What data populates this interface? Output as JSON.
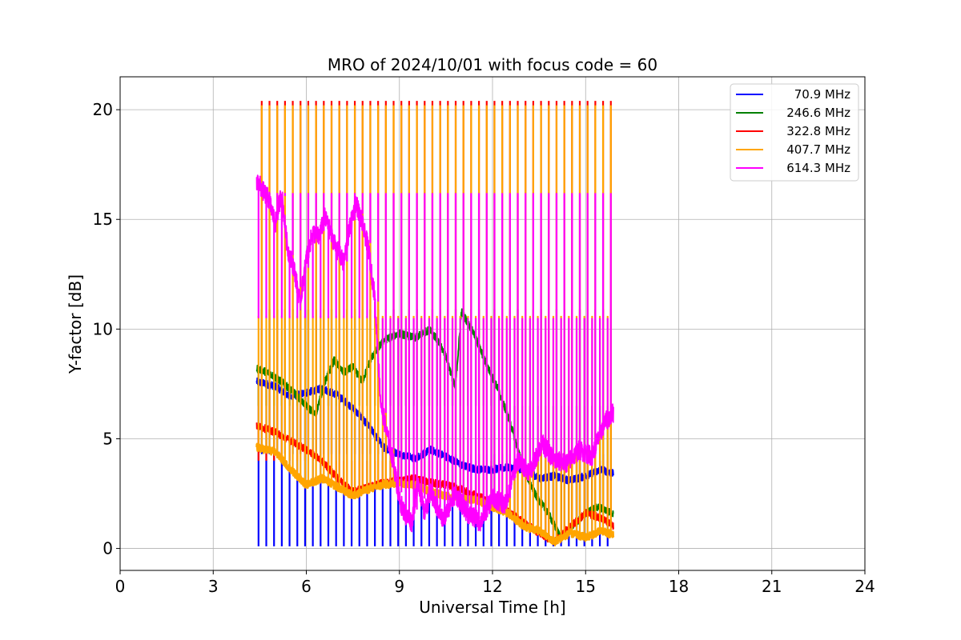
{
  "chart_data": {
    "type": "line",
    "title": "MRO of 2024/10/01 with focus code = 60",
    "xlabel": "Universal Time [h]",
    "ylabel": "Y-factor [dB]",
    "xlim": [
      0,
      24
    ],
    "ylim": [
      -1,
      21.5
    ],
    "xticks": [
      0,
      3,
      6,
      9,
      12,
      15,
      18,
      21,
      24
    ],
    "yticks": [
      0,
      5,
      10,
      15,
      20
    ],
    "grid": true,
    "legend_position": "top-right",
    "observation_window_h": [
      4.4,
      15.9
    ],
    "calibration_interval_h": 0.25,
    "series": [
      {
        "name": "70.9 MHz",
        "color": "#0000ff",
        "calibration_low": 0.1,
        "calibration_high": 4.3,
        "x": [
          4.4,
          5.0,
          5.5,
          6.0,
          6.5,
          7.0,
          7.5,
          8.0,
          8.5,
          9.0,
          9.5,
          10.0,
          10.5,
          11.0,
          11.5,
          12.0,
          12.5,
          13.0,
          13.5,
          14.0,
          14.5,
          15.0,
          15.5,
          15.9
        ],
        "y": [
          7.6,
          7.4,
          6.9,
          7.1,
          7.3,
          7.0,
          6.4,
          5.6,
          4.6,
          4.3,
          4.1,
          4.5,
          4.2,
          3.8,
          3.6,
          3.6,
          3.7,
          3.6,
          3.2,
          3.3,
          3.1,
          3.3,
          3.6,
          3.4
        ]
      },
      {
        "name": "246.6 MHz",
        "color": "#008000",
        "calibration_low": 6.5,
        "calibration_high": 10.9,
        "x": [
          4.4,
          4.8,
          5.2,
          5.6,
          6.0,
          6.3,
          6.6,
          6.9,
          7.2,
          7.5,
          7.8,
          8.1,
          8.5,
          9.0,
          9.5,
          10.0,
          10.5,
          10.8,
          11.0,
          11.4,
          11.8,
          12.2,
          12.6,
          13.0,
          13.4,
          13.8,
          14.2,
          14.6,
          15.0,
          15.4,
          15.9
        ],
        "y": [
          8.2,
          8.0,
          7.6,
          7.1,
          6.5,
          6.1,
          7.6,
          8.6,
          8.0,
          8.3,
          7.6,
          8.7,
          9.5,
          9.8,
          9.6,
          10.0,
          8.8,
          7.3,
          10.8,
          9.8,
          8.4,
          7.2,
          5.6,
          3.6,
          2.4,
          1.6,
          0.5,
          1.0,
          1.6,
          1.9,
          1.6
        ]
      },
      {
        "name": "322.8 MHz",
        "color": "#ff0000",
        "calibration_low": 4.0,
        "calibration_high": 20.4,
        "x": [
          4.4,
          5.0,
          5.5,
          6.0,
          6.5,
          7.0,
          7.5,
          8.0,
          8.5,
          9.0,
          9.5,
          10.0,
          10.5,
          11.0,
          11.5,
          12.0,
          12.5,
          13.0,
          13.5,
          14.0,
          14.5,
          15.0,
          15.5,
          15.9
        ],
        "y": [
          5.6,
          5.3,
          4.9,
          4.5,
          4.0,
          3.2,
          2.6,
          2.8,
          3.0,
          3.1,
          3.2,
          3.0,
          2.9,
          2.7,
          2.4,
          2.1,
          1.7,
          1.2,
          0.7,
          0.3,
          1.0,
          1.6,
          1.4,
          1.0
        ]
      },
      {
        "name": "407.7 MHz",
        "color": "#ffa500",
        "calibration_low": 10.6,
        "calibration_high": 20.2,
        "x": [
          4.4,
          5.0,
          5.5,
          6.0,
          6.5,
          7.0,
          7.5,
          8.0,
          8.5,
          9.0,
          9.5,
          10.0,
          10.5,
          11.0,
          11.5,
          12.0,
          12.5,
          13.0,
          13.5,
          14.0,
          14.5,
          15.0,
          15.5,
          15.9
        ],
        "y": [
          4.6,
          4.4,
          3.6,
          2.9,
          3.2,
          2.8,
          2.4,
          2.7,
          2.9,
          3.0,
          2.9,
          2.6,
          2.4,
          2.3,
          2.2,
          1.9,
          1.6,
          1.0,
          0.8,
          0.3,
          0.7,
          0.5,
          0.8,
          0.6
        ]
      },
      {
        "name": "614.3 MHz",
        "color": "#ff00ff",
        "calibration_low": 10.5,
        "calibration_high": 16.2,
        "x": [
          4.4,
          4.6,
          4.8,
          5.0,
          5.2,
          5.4,
          5.6,
          5.8,
          6.0,
          6.2,
          6.4,
          6.6,
          6.8,
          7.0,
          7.2,
          7.4,
          7.6,
          7.8,
          8.0,
          8.2,
          8.4,
          8.6,
          8.8,
          9.0,
          9.2,
          9.4,
          9.6,
          9.8,
          10.0,
          10.4,
          10.8,
          11.2,
          11.6,
          12.0,
          12.4,
          12.8,
          13.2,
          13.6,
          14.0,
          14.4,
          14.8,
          15.2,
          15.6,
          15.9
        ],
        "y": [
          16.8,
          16.3,
          15.9,
          14.8,
          16.2,
          13.6,
          12.8,
          11.2,
          13.2,
          14.4,
          14.2,
          15.1,
          14.3,
          13.6,
          13.0,
          14.6,
          15.8,
          14.8,
          13.7,
          11.5,
          6.6,
          5.2,
          4.0,
          2.2,
          1.5,
          1.2,
          3.1,
          1.6,
          2.5,
          1.3,
          2.5,
          1.6,
          1.2,
          2.3,
          2.0,
          4.0,
          3.5,
          4.8,
          4.0,
          3.9,
          4.5,
          4.2,
          5.7,
          6.2
        ]
      }
    ]
  }
}
